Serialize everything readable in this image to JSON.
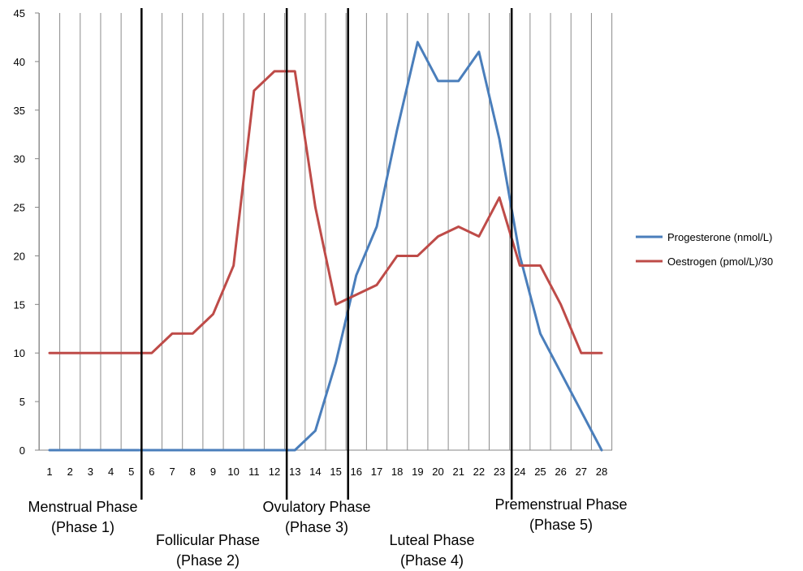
{
  "chart_data": {
    "type": "line",
    "x": [
      1,
      2,
      3,
      4,
      5,
      6,
      7,
      8,
      9,
      10,
      11,
      12,
      13,
      14,
      15,
      16,
      17,
      18,
      19,
      20,
      21,
      22,
      23,
      24,
      25,
      26,
      27,
      28
    ],
    "xlim": [
      1,
      28
    ],
    "ylim": [
      0,
      45
    ],
    "yticks": [
      0,
      5,
      10,
      15,
      20,
      25,
      30,
      35,
      40,
      45
    ],
    "grid": "vertical",
    "legend_position": "right",
    "series": [
      {
        "name": "Progesterone (nmol/L)",
        "color": "#4a7ebb",
        "values": [
          0,
          0,
          0,
          0,
          0,
          0,
          0,
          0,
          0,
          0,
          0,
          0,
          0,
          2,
          9,
          18,
          23,
          33,
          42,
          38,
          38,
          41,
          32,
          20,
          12,
          8,
          4,
          0
        ]
      },
      {
        "name": "Oestrogen (pmol/L)/30",
        "color": "#be4b48",
        "values": [
          10,
          10,
          10,
          10,
          10,
          10,
          12,
          12,
          14,
          19,
          37,
          39,
          39,
          25,
          15,
          16,
          17,
          20,
          20,
          22,
          23,
          22,
          26,
          19,
          19,
          15,
          10,
          10
        ]
      }
    ],
    "phase_markers": [
      5.5,
      12.6,
      15.6,
      23.6
    ],
    "phases": [
      {
        "line1": "Menstrual Phase",
        "line2": "(Phase 1)"
      },
      {
        "line1": "Follicular Phase",
        "line2": "(Phase 2)"
      },
      {
        "line1": "Ovulatory Phase",
        "line2": "(Phase 3)"
      },
      {
        "line1": "Luteal Phase",
        "line2": "(Phase 4)"
      },
      {
        "line1": "Premenstrual Phase",
        "line2": "(Phase 5)"
      }
    ]
  }
}
